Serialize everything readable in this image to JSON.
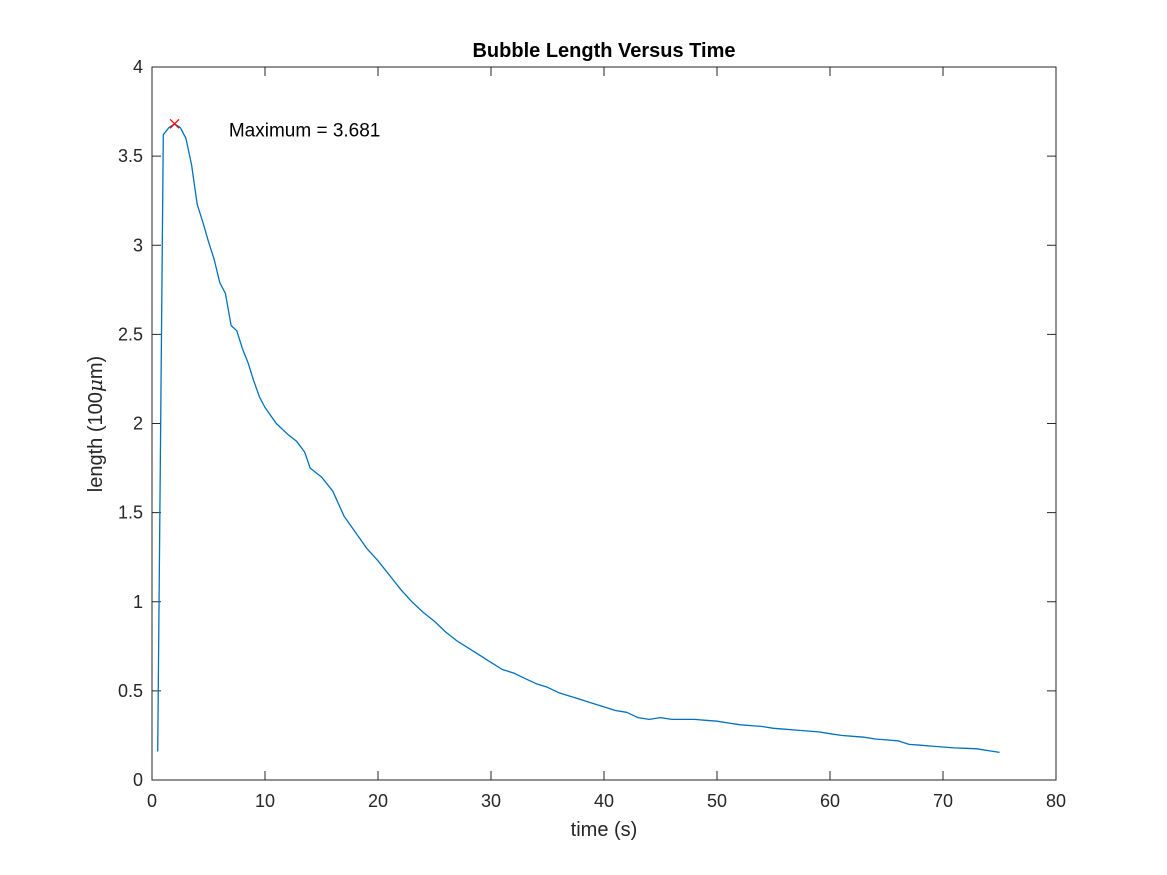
{
  "chart_data": {
    "type": "line",
    "title": "Bubble Length Versus Time",
    "xlabel": "time (s)",
    "ylabel_prefix": "length (100",
    "ylabel_mu": "μ",
    "ylabel_suffix": "m)",
    "xlim": [
      0,
      80
    ],
    "ylim": [
      0,
      4
    ],
    "xticks": [
      0,
      10,
      20,
      30,
      40,
      50,
      60,
      70,
      80
    ],
    "xtick_labels": [
      "0",
      "10",
      "20",
      "30",
      "40",
      "50",
      "60",
      "70",
      "80"
    ],
    "yticks": [
      0,
      0.5,
      1,
      1.5,
      2,
      2.5,
      3,
      3.5,
      4
    ],
    "ytick_labels": [
      "0",
      "0.5",
      "1",
      "1.5",
      "2",
      "2.5",
      "3",
      "3.5",
      "4"
    ],
    "grid": false,
    "box": true,
    "series": [
      {
        "color": "#0072bd",
        "x": [
          0.5,
          1.0,
          1.5,
          2.0,
          2.5,
          3.0,
          3.5,
          4.0,
          4.5,
          5.0,
          5.5,
          6.0,
          6.5,
          7.0,
          7.5,
          8.0,
          8.5,
          9.0,
          9.5,
          10.0,
          11.0,
          12.0,
          12.8,
          13.5,
          14.0,
          15.0,
          16.0,
          17.0,
          18.0,
          19.0,
          20.0,
          21.0,
          22.0,
          23.0,
          24.0,
          25.0,
          26.0,
          27.0,
          28.0,
          29.0,
          30.0,
          31.0,
          32.0,
          33.0,
          34.0,
          35.0,
          36.0,
          37.0,
          38.0,
          39.0,
          40.0,
          41.0,
          42.0,
          43.0,
          44.0,
          45.0,
          46.0,
          47.0,
          48.0,
          49.0,
          50.0,
          51.0,
          52.0,
          53.0,
          54.0,
          55.0,
          56.0,
          57.0,
          58.0,
          59.0,
          60.0,
          61.0,
          62.0,
          63.0,
          64.0,
          65.0,
          66.0,
          67.0,
          68.0,
          69.0,
          70.0,
          71.0,
          72.0,
          73.0,
          74.0,
          75.0
        ],
        "y": [
          0.16,
          3.62,
          3.66,
          3.681,
          3.66,
          3.6,
          3.45,
          3.23,
          3.13,
          3.02,
          2.92,
          2.79,
          2.73,
          2.55,
          2.52,
          2.42,
          2.34,
          2.24,
          2.15,
          2.09,
          2.0,
          1.94,
          1.9,
          1.84,
          1.75,
          1.7,
          1.62,
          1.48,
          1.39,
          1.3,
          1.23,
          1.15,
          1.07,
          1.0,
          0.94,
          0.89,
          0.83,
          0.78,
          0.74,
          0.7,
          0.66,
          0.62,
          0.6,
          0.57,
          0.54,
          0.52,
          0.49,
          0.47,
          0.45,
          0.43,
          0.41,
          0.39,
          0.38,
          0.35,
          0.34,
          0.35,
          0.34,
          0.34,
          0.34,
          0.335,
          0.33,
          0.32,
          0.31,
          0.305,
          0.3,
          0.29,
          0.285,
          0.28,
          0.275,
          0.27,
          0.26,
          0.25,
          0.245,
          0.24,
          0.23,
          0.225,
          0.22,
          0.2,
          0.195,
          0.19,
          0.185,
          0.18,
          0.178,
          0.175,
          0.165,
          0.155
        ]
      }
    ],
    "maximum_marker": {
      "x": 2.0,
      "y": 3.681,
      "color": "#ff0000",
      "label": "Maximum = 3.681",
      "label_x": 6.8,
      "label_y": 3.65
    }
  }
}
